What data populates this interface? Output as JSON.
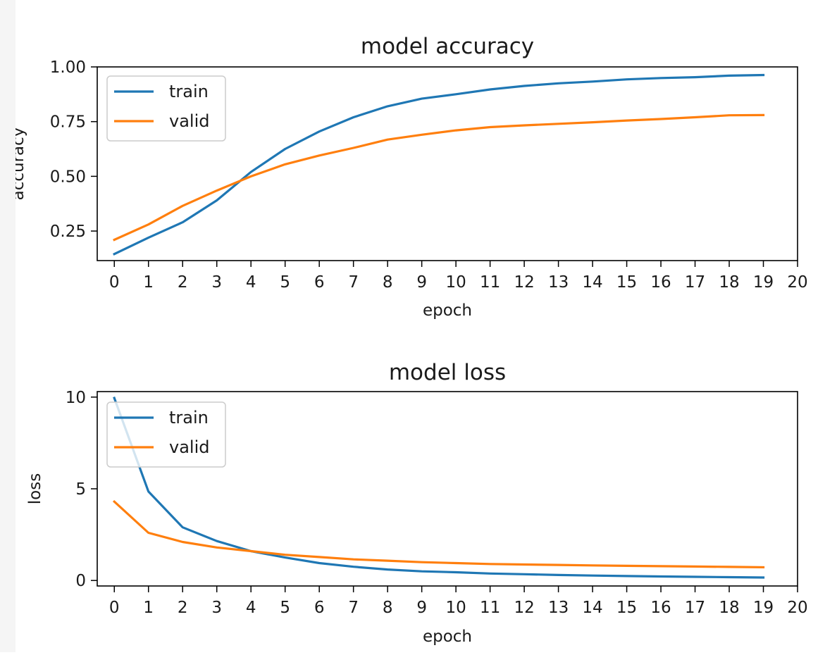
{
  "chart_data": [
    {
      "type": "line",
      "title": "model accuracy",
      "xlabel": "epoch",
      "ylabel": "accuracy",
      "xlim": [
        -0.5,
        20
      ],
      "ylim": [
        0.115,
        1.0
      ],
      "xticks": [
        0,
        1,
        2,
        3,
        4,
        5,
        6,
        7,
        8,
        9,
        10,
        11,
        12,
        13,
        14,
        15,
        16,
        17,
        18,
        19,
        20
      ],
      "xtick_labels": [
        "0",
        "1",
        "2",
        "3",
        "4",
        "5",
        "6",
        "7",
        "8",
        "9",
        "10",
        "11",
        "12",
        "13",
        "14",
        "15",
        "16",
        "17",
        "18",
        "19",
        "20"
      ],
      "yticks": [
        0.25,
        0.5,
        0.75,
        1.0
      ],
      "ytick_labels": [
        "0.25",
        "0.50",
        "0.75",
        "1.00"
      ],
      "grid": false,
      "legend_position": "upper-left",
      "x": [
        0,
        1,
        2,
        3,
        4,
        5,
        6,
        7,
        8,
        9,
        10,
        11,
        12,
        13,
        14,
        15,
        16,
        17,
        18,
        19
      ],
      "series": [
        {
          "name": "train",
          "color": "#1f77b4",
          "values": [
            0.145,
            0.22,
            0.29,
            0.39,
            0.52,
            0.625,
            0.705,
            0.77,
            0.82,
            0.855,
            0.875,
            0.897,
            0.913,
            0.925,
            0.933,
            0.943,
            0.949,
            0.953,
            0.96,
            0.963
          ]
        },
        {
          "name": "valid",
          "color": "#ff7f0e",
          "values": [
            0.21,
            0.28,
            0.365,
            0.435,
            0.5,
            0.555,
            0.595,
            0.63,
            0.668,
            0.69,
            0.71,
            0.725,
            0.733,
            0.74,
            0.747,
            0.755,
            0.762,
            0.77,
            0.779,
            0.78
          ]
        }
      ]
    },
    {
      "type": "line",
      "title": "model loss",
      "xlabel": "epoch",
      "ylabel": "loss",
      "xlim": [
        -0.5,
        20
      ],
      "ylim": [
        -0.3,
        10.3
      ],
      "xticks": [
        0,
        1,
        2,
        3,
        4,
        5,
        6,
        7,
        8,
        9,
        10,
        11,
        12,
        13,
        14,
        15,
        16,
        17,
        18,
        19,
        20
      ],
      "xtick_labels": [
        "0",
        "1",
        "2",
        "3",
        "4",
        "5",
        "6",
        "7",
        "8",
        "9",
        "10",
        "11",
        "12",
        "13",
        "14",
        "15",
        "16",
        "17",
        "18",
        "19",
        "20"
      ],
      "yticks": [
        0,
        5,
        10
      ],
      "ytick_labels": [
        "0",
        "5",
        "10"
      ],
      "grid": false,
      "legend_position": "upper-left",
      "x": [
        0,
        1,
        2,
        3,
        4,
        5,
        6,
        7,
        8,
        9,
        10,
        11,
        12,
        13,
        14,
        15,
        16,
        17,
        18,
        19
      ],
      "series": [
        {
          "name": "train",
          "color": "#1f77b4",
          "values": [
            9.95,
            4.85,
            2.9,
            2.15,
            1.6,
            1.25,
            0.95,
            0.75,
            0.6,
            0.5,
            0.45,
            0.38,
            0.34,
            0.3,
            0.27,
            0.24,
            0.22,
            0.2,
            0.18,
            0.16
          ]
        },
        {
          "name": "valid",
          "color": "#ff7f0e",
          "values": [
            4.3,
            2.6,
            2.1,
            1.8,
            1.6,
            1.4,
            1.28,
            1.15,
            1.08,
            1.0,
            0.95,
            0.9,
            0.87,
            0.85,
            0.82,
            0.8,
            0.78,
            0.76,
            0.74,
            0.72
          ]
        }
      ]
    }
  ]
}
